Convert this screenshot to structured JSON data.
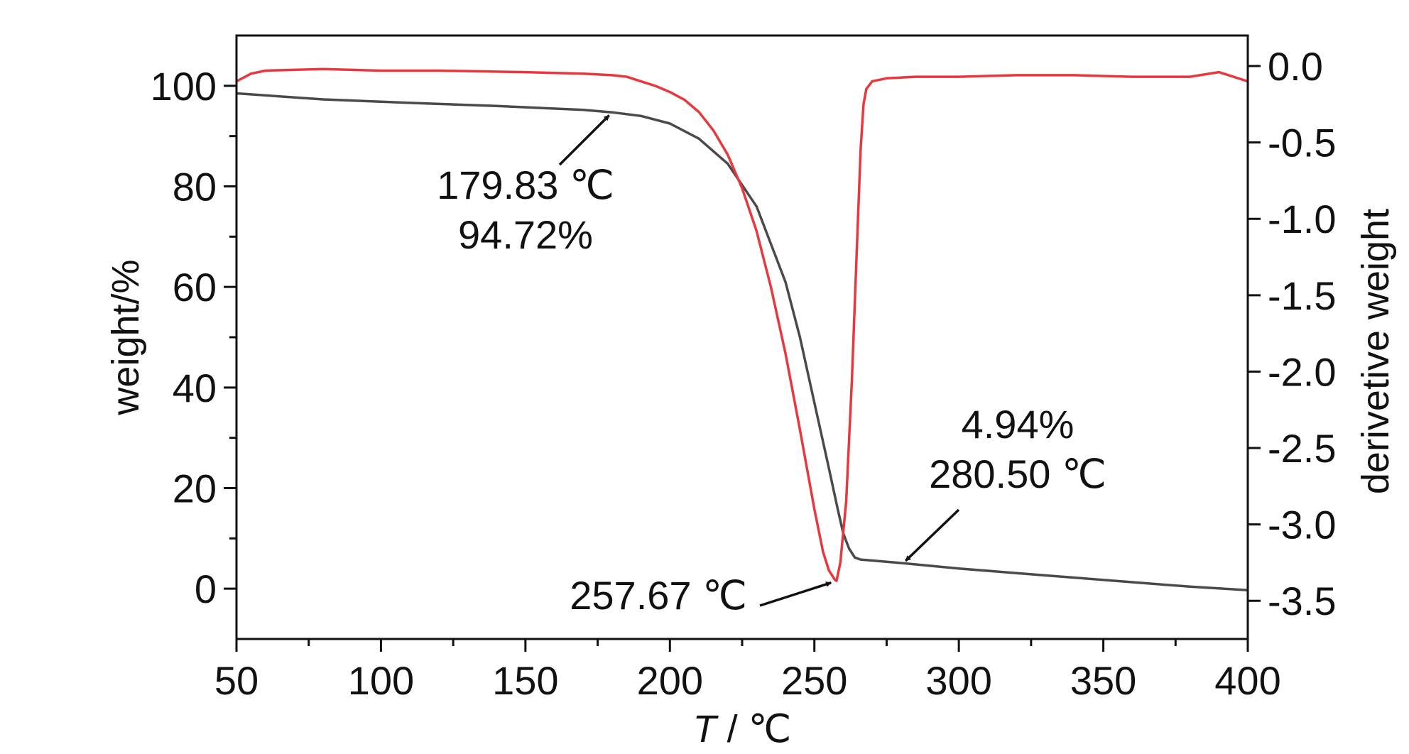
{
  "chart_data": {
    "type": "line",
    "x_axis": {
      "label_italic": "T",
      "label_rest": " / ℃",
      "range": [
        50,
        400
      ],
      "ticks": [
        50,
        100,
        150,
        200,
        250,
        300,
        350,
        400
      ],
      "tick_labels": [
        "50",
        "100",
        "150",
        "200",
        "250",
        "300",
        "350",
        "400"
      ]
    },
    "y_axis_left": {
      "label": "weight/%",
      "range": [
        -10,
        110
      ],
      "ticks": [
        0,
        20,
        40,
        60,
        80,
        100
      ],
      "tick_labels": [
        "0",
        "20",
        "40",
        "60",
        "80",
        "100"
      ]
    },
    "y_axis_right": {
      "label": "derivetive weight",
      "range": [
        -3.75,
        0.2
      ],
      "ticks": [
        0.0,
        -0.5,
        -1.0,
        -1.5,
        -2.0,
        -2.5,
        -3.0,
        -3.5
      ],
      "tick_labels": [
        "0.0",
        "-0.5",
        "-1.0",
        "-1.5",
        "-2.0",
        "-2.5",
        "-3.0",
        "-3.5"
      ]
    },
    "grid": false,
    "series": [
      {
        "axis": "left",
        "color": "#4a4a4a",
        "x": [
          50,
          80,
          110,
          140,
          170,
          180,
          190,
          200,
          210,
          220,
          230,
          240,
          245,
          250,
          255,
          258,
          260,
          262,
          264,
          266,
          270,
          280,
          300,
          320,
          340,
          360,
          380,
          400
        ],
        "y": [
          98.5,
          97.3,
          96.6,
          96.0,
          95.2,
          94.72,
          94.0,
          92.5,
          89.5,
          84.5,
          76,
          61,
          50,
          37,
          24,
          16,
          11,
          8,
          6.2,
          5.8,
          5.6,
          5.1,
          4.0,
          3.1,
          2.2,
          1.3,
          0.4,
          -0.3
        ]
      },
      {
        "axis": "right",
        "color": "#e8383d",
        "x": [
          50,
          55,
          60,
          80,
          100,
          120,
          150,
          170,
          180,
          185,
          190,
          195,
          200,
          205,
          210,
          215,
          220,
          225,
          230,
          235,
          240,
          245,
          250,
          253,
          255,
          257,
          257.67,
          259,
          261,
          263,
          265,
          266,
          267,
          268,
          270,
          275,
          285,
          300,
          320,
          340,
          360,
          380,
          390,
          400
        ],
        "y": [
          -0.1,
          -0.05,
          -0.03,
          -0.02,
          -0.03,
          -0.03,
          -0.04,
          -0.05,
          -0.06,
          -0.07,
          -0.1,
          -0.13,
          -0.17,
          -0.22,
          -0.3,
          -0.42,
          -0.58,
          -0.8,
          -1.08,
          -1.45,
          -1.88,
          -2.38,
          -2.9,
          -3.18,
          -3.3,
          -3.36,
          -3.37,
          -3.25,
          -2.85,
          -2.05,
          -1.05,
          -0.55,
          -0.25,
          -0.15,
          -0.1,
          -0.08,
          -0.07,
          -0.07,
          -0.06,
          -0.06,
          -0.07,
          -0.07,
          -0.04,
          -0.1
        ]
      }
    ],
    "annotations": [
      {
        "lines": [
          "179.83 ℃",
          "94.72%"
        ],
        "point": {
          "x": 180,
          "y": 94.72,
          "axis": "left"
        }
      },
      {
        "lines": [
          "257.67 ℃"
        ],
        "point": {
          "x": 257.67,
          "y": -3.37,
          "axis": "right"
        }
      },
      {
        "lines": [
          "4.94%",
          "280.50 ℃"
        ],
        "point": {
          "x": 280.5,
          "y": 4.94,
          "axis": "left"
        }
      }
    ]
  }
}
